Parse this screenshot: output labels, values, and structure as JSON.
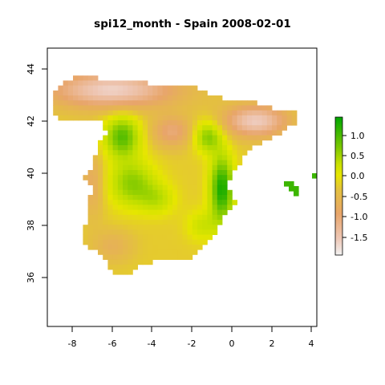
{
  "title": "spi12_month - Spain 2008-02-01",
  "map": {
    "x_ticks": [
      "-8",
      "-6",
      "-4",
      "-2",
      "0",
      "2",
      "4"
    ],
    "y_ticks": [
      "36",
      "38",
      "40",
      "42",
      "44"
    ],
    "x_range": [
      -9.2,
      4.2
    ],
    "y_range": [
      34.2,
      44.9
    ],
    "region": "Spain",
    "variable": "spi12_month",
    "date": "2008-02-01"
  },
  "legend": {
    "ticks": [
      "1.0",
      "0.5",
      "0.0",
      "-0.5",
      "-1.0",
      "-1.5"
    ],
    "range": [
      -1.95,
      1.4
    ],
    "placement": "right",
    "colors": {
      "max": "#00a600",
      "mid": "#e6e600",
      "low": "#ecb176",
      "min": "#f2f2f2"
    }
  }
}
